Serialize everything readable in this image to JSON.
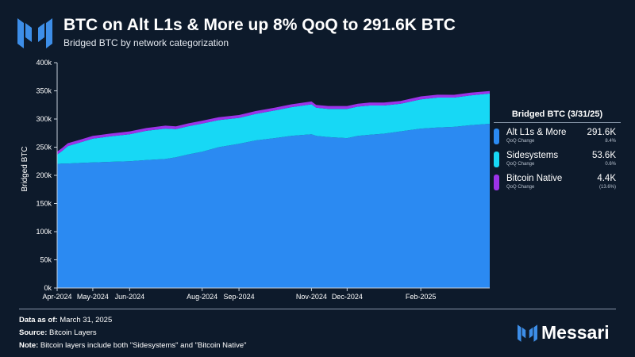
{
  "header": {
    "title": "BTC on Alt L1s & More up 8% QoQ to 291.6K BTC",
    "subtitle": "Bridged BTC by network categorization"
  },
  "legend": {
    "title": "Bridged BTC (3/31/25)",
    "change_label": "QoQ Change",
    "items": [
      {
        "name": "Alt L1s & More",
        "value": "291.6K",
        "change": "8.4%"
      },
      {
        "name": "Sidesystems",
        "value": "53.6K",
        "change": "0.6%"
      },
      {
        "name": "Bitcoin Native",
        "value": "4.4K",
        "change": "(13.6%)"
      }
    ]
  },
  "footer": {
    "asof_label": "Data as of:",
    "asof_value": "March 31, 2025",
    "source_label": "Source:",
    "source_value": "Bitcoin Layers",
    "note_label": "Note:",
    "note_value": "Bitcoin layers include both \"Sidesystems\" and \"Bitcoin Native\""
  },
  "brand": {
    "name": "Messari"
  },
  "colors": {
    "background": "#0d1a2b",
    "alt_l1s": "#2b8af2",
    "sidesystems": "#17d8f5",
    "bitcoin_native": "#9c33e8"
  },
  "chart_data": {
    "type": "area",
    "stacked": true,
    "ylabel": "Bridged BTC",
    "xlabel": "",
    "ylim": [
      0,
      400000
    ],
    "y_ticks": [
      "0k",
      "50k",
      "100k",
      "150k",
      "200k",
      "250k",
      "300k",
      "350k",
      "400k"
    ],
    "x_ticks": [
      "Apr-2024",
      "May-2024",
      "Jun-2024",
      "Aug-2024",
      "Sep-2024",
      "Nov-2024",
      "Dec-2024",
      "Feb-2025"
    ],
    "x_tick_dates": [
      "2024-04-01",
      "2024-05-01",
      "2024-06-01",
      "2024-08-01",
      "2024-09-01",
      "2024-11-01",
      "2024-12-01",
      "2025-02-01"
    ],
    "x_range": [
      "2024-04-01",
      "2025-03-31"
    ],
    "legend_position": "right",
    "grid": false,
    "x": [
      "2024-04-01",
      "2024-04-05",
      "2024-04-10",
      "2024-04-20",
      "2024-05-01",
      "2024-05-15",
      "2024-06-01",
      "2024-06-15",
      "2024-07-01",
      "2024-07-10",
      "2024-07-20",
      "2024-08-01",
      "2024-08-15",
      "2024-09-01",
      "2024-09-15",
      "2024-10-01",
      "2024-10-15",
      "2024-11-01",
      "2024-11-05",
      "2024-11-15",
      "2024-12-01",
      "2024-12-10",
      "2024-12-20",
      "2025-01-01",
      "2025-01-15",
      "2025-02-01",
      "2025-02-15",
      "2025-03-01",
      "2025-03-15",
      "2025-03-31"
    ],
    "series": [
      {
        "name": "Alt L1s & More",
        "color": "#2b8af2",
        "values": [
          220000,
          221000,
          221000,
          222000,
          223000,
          224000,
          225000,
          227000,
          229000,
          232000,
          237000,
          242000,
          250000,
          256000,
          262000,
          266000,
          270000,
          273000,
          270000,
          268000,
          266000,
          270000,
          272000,
          274000,
          278000,
          283000,
          285000,
          286000,
          289000,
          291600
        ]
      },
      {
        "name": "Sidesystems",
        "color": "#17d8f5",
        "values": [
          17000,
          22000,
          31000,
          36000,
          42000,
          45000,
          48000,
          52000,
          54000,
          50000,
          50000,
          50000,
          48000,
          46000,
          47000,
          49000,
          51000,
          53000,
          50000,
          50000,
          52000,
          52000,
          52000,
          50000,
          49000,
          52000,
          53000,
          52000,
          53000,
          53600
        ]
      },
      {
        "name": "Bitcoin Native",
        "color": "#9c33e8",
        "values": [
          5100,
          5100,
          5100,
          5000,
          5000,
          5000,
          5000,
          5000,
          5100,
          5100,
          5100,
          5100,
          5100,
          5100,
          5100,
          5100,
          5100,
          5100,
          5100,
          5100,
          5100,
          5100,
          5100,
          5100,
          5100,
          5100,
          5100,
          5000,
          4700,
          4400
        ]
      }
    ]
  }
}
